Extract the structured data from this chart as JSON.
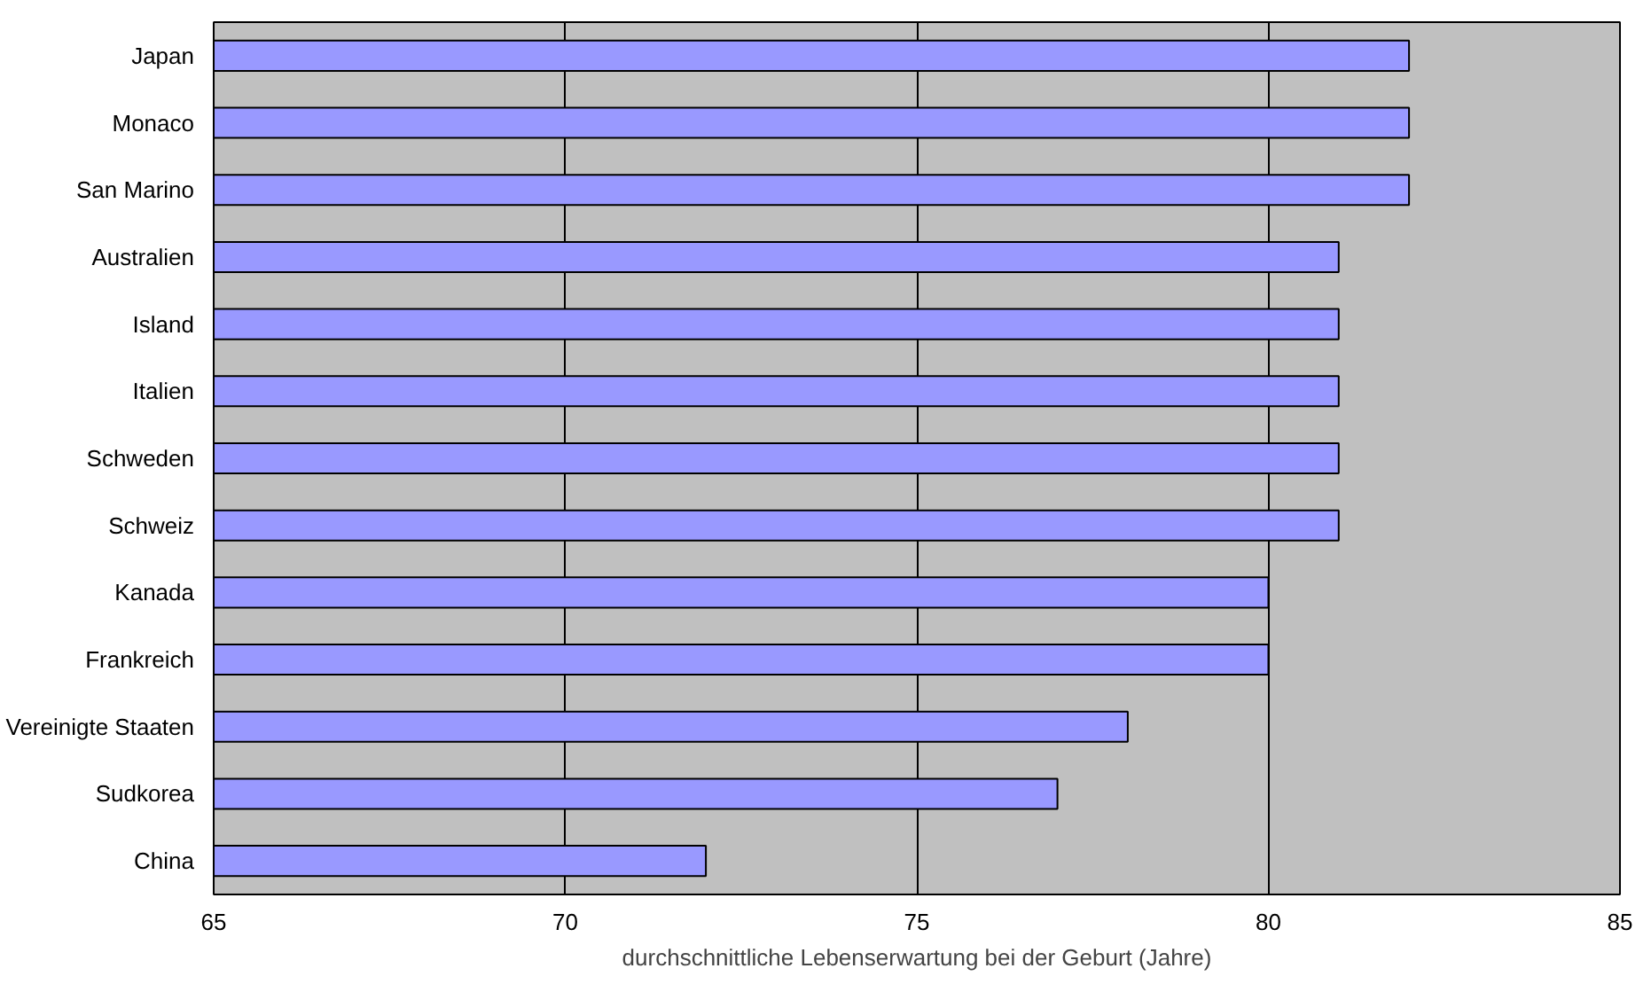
{
  "chart_data": {
    "type": "bar",
    "orientation": "horizontal",
    "xlabel": "durchschnittliche Lebenserwartung bei der Geburt (Jahre)",
    "categories": [
      "Japan",
      "Monaco",
      "San Marino",
      "Australien",
      "Island",
      "Italien",
      "Schweden",
      "Schweiz",
      "Kanada",
      "Frankreich",
      "Vereinigte Staaten",
      "Sudkorea",
      "China"
    ],
    "values": [
      82,
      82,
      82,
      81,
      81,
      81,
      81,
      81,
      80,
      80,
      78,
      77,
      72
    ],
    "color": "#9999ff",
    "xlim": [
      65,
      85
    ],
    "xticks": [
      65,
      70,
      75,
      80,
      85
    ],
    "grid": "x"
  }
}
